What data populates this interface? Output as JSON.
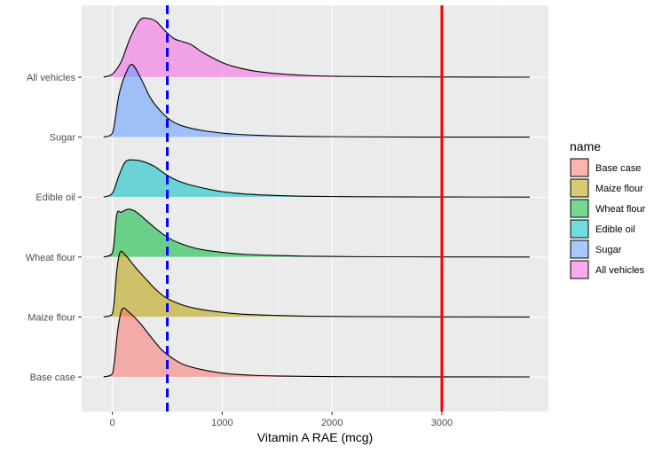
{
  "chart_data": {
    "type": "ridgeline",
    "xlabel": "Vitamin A RAE (mcg)",
    "ylabel": "",
    "xlim": [
      -280,
      3970
    ],
    "x_ticks": [
      0,
      1000,
      2000,
      3000
    ],
    "x_tick_labels": [
      "0",
      "1000",
      "2000",
      "3000"
    ],
    "categories": [
      "Base case",
      "Maize flour",
      "Wheat flour",
      "Edible oil",
      "Sugar",
      "All vehicles"
    ],
    "grid": true,
    "legend": {
      "title": "name",
      "position": "right",
      "entries": [
        "Base case",
        "Maize flour",
        "Wheat flour",
        "Edible oil",
        "Sugar",
        "All vehicles"
      ]
    },
    "series": [
      {
        "name": "Base case",
        "color": "#F8766D",
        "x": [
          -80,
          0,
          50,
          90,
          150,
          250,
          350,
          450,
          550,
          650,
          800,
          950,
          1100,
          1300,
          1500,
          1800,
          2200,
          2800,
          3800
        ],
        "density": [
          0,
          0.04,
          0.62,
          0.88,
          0.84,
          0.7,
          0.52,
          0.35,
          0.24,
          0.16,
          0.1,
          0.06,
          0.035,
          0.02,
          0.012,
          0.006,
          0.003,
          0.001,
          0
        ]
      },
      {
        "name": "Maize flour",
        "color": "#B79F00",
        "x": [
          -80,
          0,
          40,
          70,
          120,
          200,
          300,
          400,
          500,
          650,
          800,
          1000,
          1200,
          1500,
          1800,
          2200,
          2800,
          3800
        ],
        "density": [
          0,
          0.04,
          0.6,
          0.84,
          0.8,
          0.66,
          0.5,
          0.35,
          0.24,
          0.15,
          0.1,
          0.06,
          0.035,
          0.02,
          0.01,
          0.005,
          0.002,
          0
        ]
      },
      {
        "name": "Wheat flour",
        "color": "#00BA38",
        "x": [
          -80,
          0,
          40,
          80,
          150,
          220,
          320,
          420,
          520,
          650,
          800,
          1000,
          1200,
          1500,
          1800,
          2200,
          2800,
          3800
        ],
        "density": [
          0,
          0.05,
          0.55,
          0.58,
          0.62,
          0.58,
          0.46,
          0.34,
          0.24,
          0.16,
          0.1,
          0.06,
          0.035,
          0.02,
          0.01,
          0.005,
          0.002,
          0
        ]
      },
      {
        "name": "Edible oil",
        "color": "#00BFC4",
        "x": [
          -80,
          0,
          60,
          120,
          200,
          280,
          380,
          480,
          580,
          700,
          850,
          1000,
          1200,
          1500,
          1800,
          2200,
          2800,
          3800
        ],
        "density": [
          0,
          0.05,
          0.28,
          0.46,
          0.48,
          0.46,
          0.4,
          0.3,
          0.22,
          0.16,
          0.11,
          0.07,
          0.04,
          0.02,
          0.01,
          0.005,
          0.002,
          0
        ]
      },
      {
        "name": "Sugar",
        "color": "#619CFF",
        "x": [
          -80,
          0,
          60,
          120,
          180,
          260,
          350,
          450,
          550,
          650,
          800,
          950,
          1100,
          1300,
          1500,
          1800,
          2200,
          2800,
          3800
        ],
        "density": [
          0,
          0.05,
          0.55,
          0.82,
          0.94,
          0.76,
          0.5,
          0.32,
          0.2,
          0.14,
          0.09,
          0.06,
          0.04,
          0.025,
          0.015,
          0.008,
          0.004,
          0.001,
          0
        ]
      },
      {
        "name": "All vehicles",
        "color": "#F564E3",
        "x": [
          -80,
          0,
          80,
          160,
          250,
          330,
          400,
          480,
          560,
          640,
          720,
          800,
          900,
          1000,
          1100,
          1250,
          1400,
          1600,
          1800,
          2100,
          2500,
          3000,
          3800
        ],
        "density": [
          0,
          0.04,
          0.2,
          0.5,
          0.74,
          0.76,
          0.72,
          0.6,
          0.5,
          0.46,
          0.42,
          0.34,
          0.26,
          0.19,
          0.14,
          0.09,
          0.06,
          0.035,
          0.02,
          0.01,
          0.005,
          0.002,
          0
        ]
      }
    ],
    "reference_lines": [
      {
        "x": 500,
        "color": "#0000FF",
        "style": "dashed"
      },
      {
        "x": 3000,
        "color": "#FF0000",
        "style": "solid"
      }
    ]
  }
}
